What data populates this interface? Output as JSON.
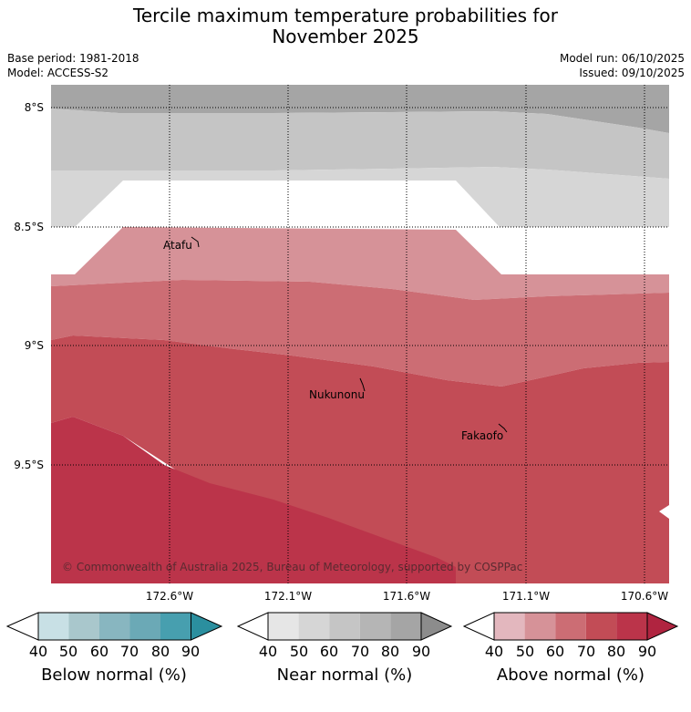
{
  "header": {
    "title_line1": "Tercile maximum temperature probabilities for",
    "title_line2": "November 2025",
    "base_period": "Base period: 1981-2018",
    "model": "Model: ACCESS-S2",
    "model_run": "Model run: 06/10/2025",
    "issued": "Issued: 09/10/2025"
  },
  "map": {
    "lat_labels": [
      "8°S",
      "8.5°S",
      "9°S",
      "9.5°S"
    ],
    "lon_labels": [
      "172.6°W",
      "172.1°W",
      "171.6°W",
      "171.1°W",
      "170.6°W"
    ],
    "places": [
      {
        "name": "Atafu"
      },
      {
        "name": "Nukunonu"
      },
      {
        "name": "Fakaofo"
      }
    ],
    "copyright": "© Commonwealth of Australia 2025, Bureau of Meteorology, supported by COSPPac"
  },
  "colorbars": [
    {
      "label": "Below normal (%)",
      "ticks": [
        "40",
        "50",
        "60",
        "70",
        "80",
        "90"
      ],
      "colors": [
        "#ffffff",
        "#c8e0e5",
        "#a9c7cc",
        "#88b6c0",
        "#6ba9b6",
        "#479faf",
        "#2b8f9f"
      ]
    },
    {
      "label": "Near normal (%)",
      "ticks": [
        "40",
        "50",
        "60",
        "70",
        "80",
        "90"
      ],
      "colors": [
        "#ffffff",
        "#e6e6e6",
        "#d6d6d6",
        "#c5c5c5",
        "#b5b5b5",
        "#a5a5a5",
        "#8c8c8c"
      ]
    },
    {
      "label": "Above normal (%)",
      "ticks": [
        "40",
        "50",
        "60",
        "70",
        "80",
        "90"
      ],
      "colors": [
        "#ffffff",
        "#e3b7be",
        "#d69298",
        "#cc6d74",
        "#c24c56",
        "#bb344a",
        "#b02440"
      ]
    }
  ]
}
